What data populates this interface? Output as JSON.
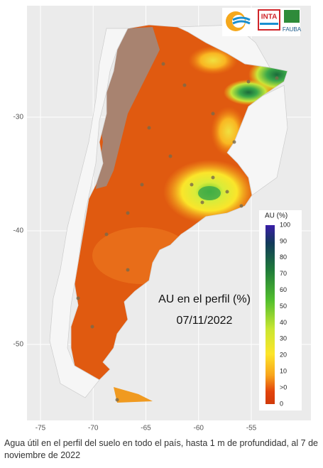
{
  "map": {
    "title": "AU en el perfil (%)",
    "date": "07/11/2022",
    "lat_ticks": [
      -30,
      -40,
      -50
    ],
    "lon_ticks": [
      -75,
      -70,
      -65,
      -60,
      -55
    ],
    "legend": {
      "title": "AU (%)",
      "labels": [
        "100",
        "90",
        "80",
        "70",
        "60",
        "50",
        "40",
        "30",
        "20",
        "10",
        ">0",
        "0"
      ]
    },
    "logos": [
      "INTA",
      "FAUBA"
    ]
  },
  "caption": "Agua útil en el perfil del suelo en todo el país, hasta 1 m de profundidad, al 7 de noviembre de 2022"
}
